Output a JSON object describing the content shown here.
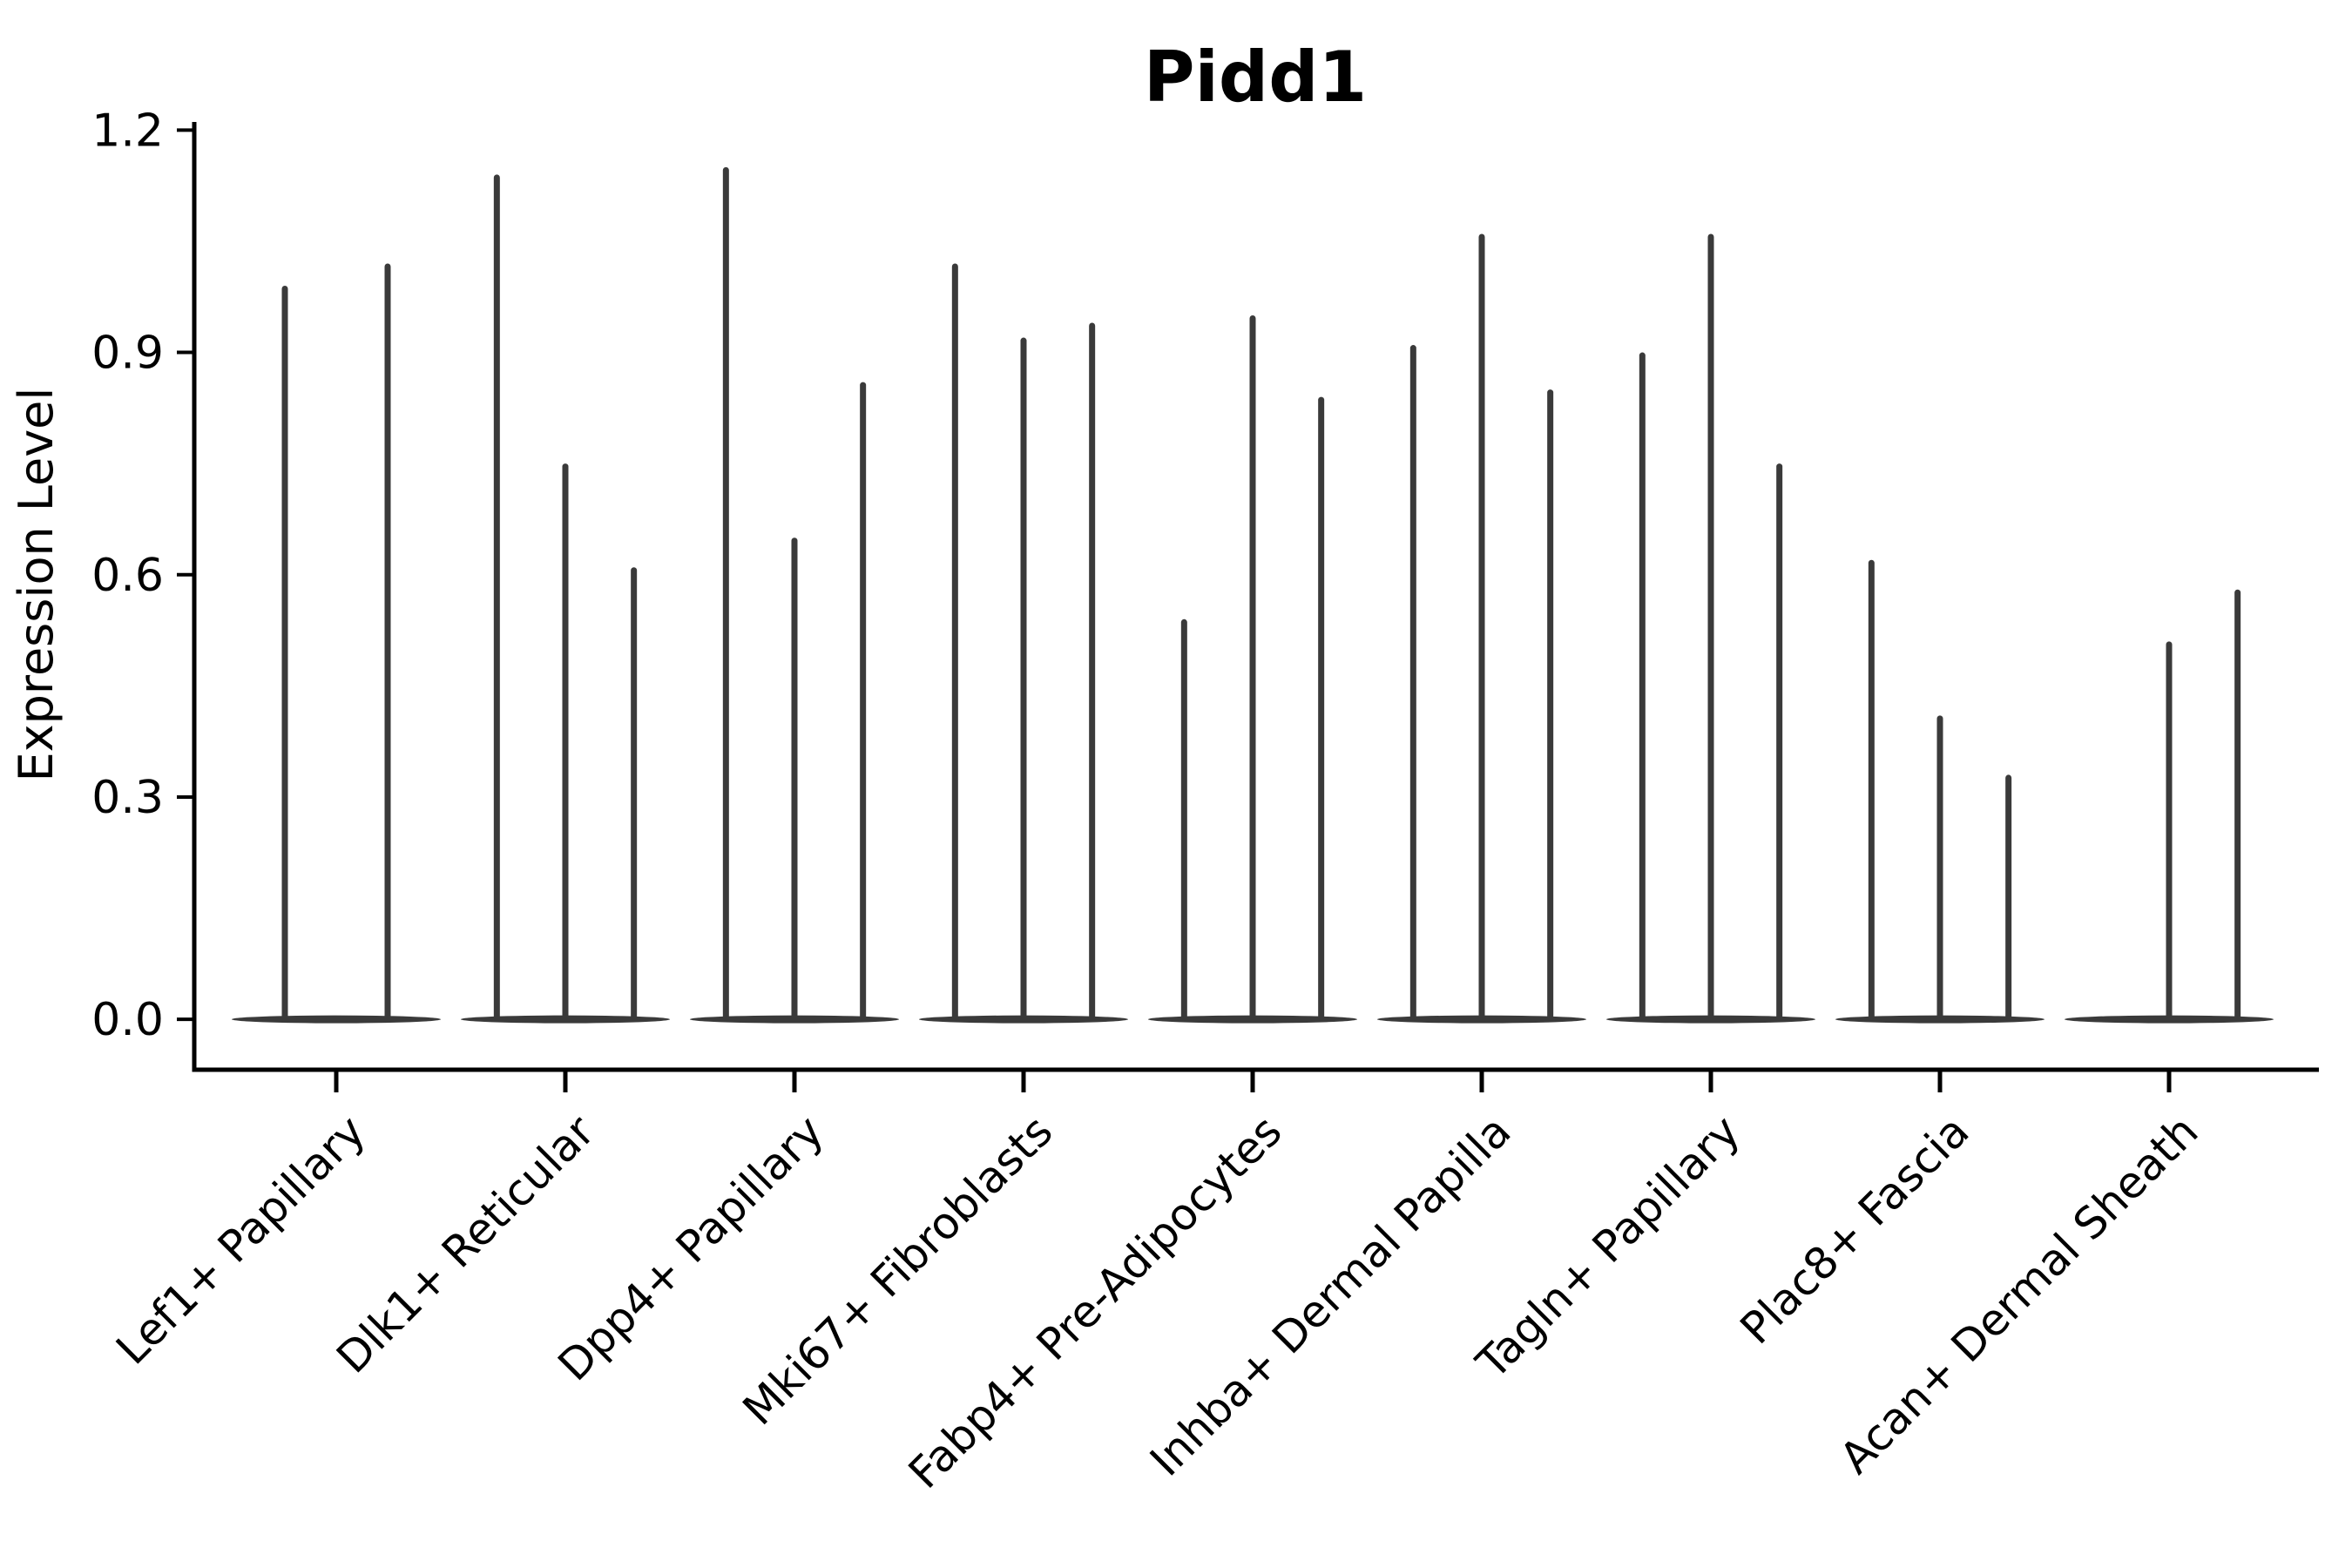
{
  "figure": {
    "background": "#ffffff"
  },
  "chart_data": {
    "type": "violin",
    "title": "Pidd1",
    "xlabel": "",
    "ylabel": "Expression Level",
    "ylim": [
      -0.068,
      1.211
    ],
    "yticks": [
      0.0,
      0.3,
      0.6,
      0.9,
      1.2
    ],
    "grid": false,
    "legend": "none",
    "categories": [
      "Lef1+ Papillary",
      "Dlk1+ Reticular",
      "Dpp4+ Papillary",
      "Mki67+ Fibroblasts",
      "Fabp4+ Pre-Adipocytes",
      "Inhba+ Dermal Papilla",
      "Tagln+ Papillary",
      "Plac8+ Fascia",
      "Acan+ Dermal Sheath"
    ],
    "groups": [
      {
        "category": "Lef1+ Papillary",
        "violin_peaks": [
          0.99,
          1.02
        ]
      },
      {
        "category": "Dlk1+ Reticular",
        "violin_peaks": [
          1.14,
          0.75,
          0.61
        ]
      },
      {
        "category": "Dpp4+ Papillary",
        "violin_peaks": [
          1.15,
          0.65,
          0.86
        ]
      },
      {
        "category": "Mki67+ Fibroblasts",
        "violin_peaks": [
          1.02,
          0.92,
          0.94
        ]
      },
      {
        "category": "Fabp4+ Pre-Adipocytes",
        "violin_peaks": [
          0.54,
          0.95,
          0.84
        ]
      },
      {
        "category": "Inhba+ Dermal Papilla",
        "violin_peaks": [
          0.91,
          1.06,
          0.85
        ]
      },
      {
        "category": "Tagln+ Papillary",
        "violin_peaks": [
          0.9,
          1.06,
          0.75
        ]
      },
      {
        "category": "Plac8+ Fascia",
        "violin_peaks": [
          0.62,
          0.41,
          0.33
        ]
      },
      {
        "category": "Acan+ Dermal Sheath",
        "violin_peaks": [
          0.0,
          0.51,
          0.58
        ]
      }
    ],
    "style": {
      "violin_color": "#3a3a3a",
      "axis_color": "#000000",
      "text_color": "#000000",
      "xtick_rotation_deg": 45,
      "title_bold": true
    }
  }
}
